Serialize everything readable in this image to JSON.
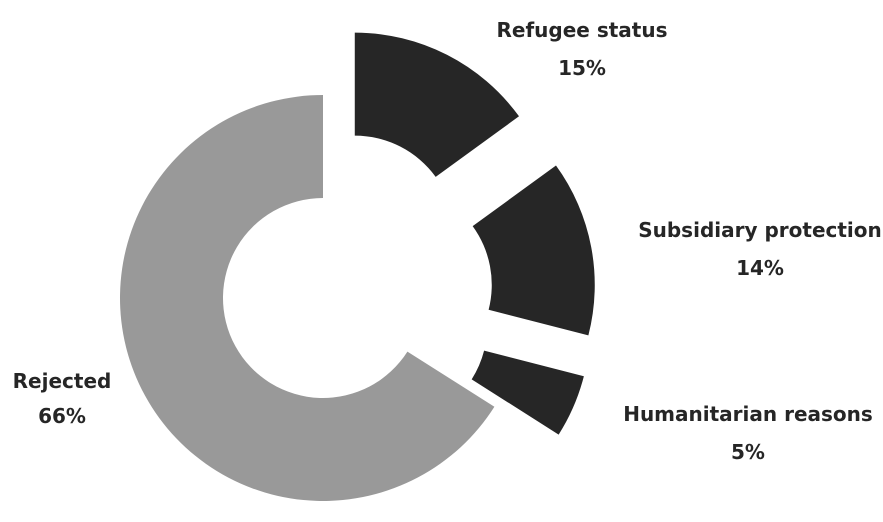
{
  "chart_data": {
    "type": "pie",
    "variant": "donut-exploded",
    "title": "",
    "start_angle_degrees": 0,
    "direction": "clockwise",
    "slices": [
      {
        "label": "Refugee status",
        "value_label": "15%",
        "value": 15,
        "color": "#262626",
        "exploded": true
      },
      {
        "label": "Subsidiary protection",
        "value_label": "14%",
        "value": 14,
        "color": "#262626",
        "exploded": true
      },
      {
        "label": "Humanitarian reasons",
        "value_label": "5%",
        "value": 5,
        "color": "#262626",
        "exploded": true
      },
      {
        "label": "Rejected",
        "value_label": "66%",
        "value": 66,
        "color": "#999999",
        "exploded": false
      }
    ],
    "legend": "none",
    "label_color": "#262626"
  }
}
